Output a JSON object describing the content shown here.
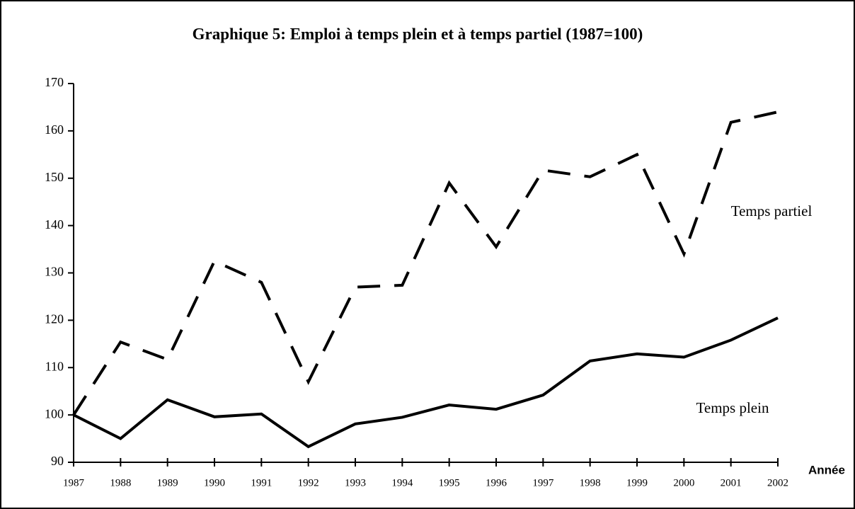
{
  "chart_data": {
    "type": "line",
    "title": "Graphique 5: Emploi à temps plein et à temps partiel (1987=100)",
    "x_label": "Année",
    "categories": [
      "1987",
      "1988",
      "1989",
      "1990",
      "1991",
      "1992",
      "1993",
      "1994",
      "1995",
      "1996",
      "1997",
      "1998",
      "1999",
      "2000",
      "2001",
      "2002"
    ],
    "series": [
      {
        "name": "Temps partiel",
        "color": "#000000",
        "dash": "dashed",
        "values": [
          100,
          115.4,
          111.7,
          132.5,
          128,
          107,
          127,
          127.4,
          149,
          135.5,
          151.7,
          150.3,
          155,
          134,
          161.8,
          164
        ]
      },
      {
        "name": "Temps plein",
        "color": "#000000",
        "dash": "solid",
        "values": [
          100,
          95,
          103.2,
          99.6,
          100.2,
          93.3,
          98.1,
          99.5,
          102.1,
          101.2,
          104.2,
          111.4,
          112.9,
          112.2,
          115.8,
          120.5
        ]
      }
    ],
    "ylim": [
      90,
      170
    ],
    "yticks": [
      90,
      100,
      110,
      120,
      130,
      140,
      150,
      160,
      170
    ],
    "grid": false
  }
}
